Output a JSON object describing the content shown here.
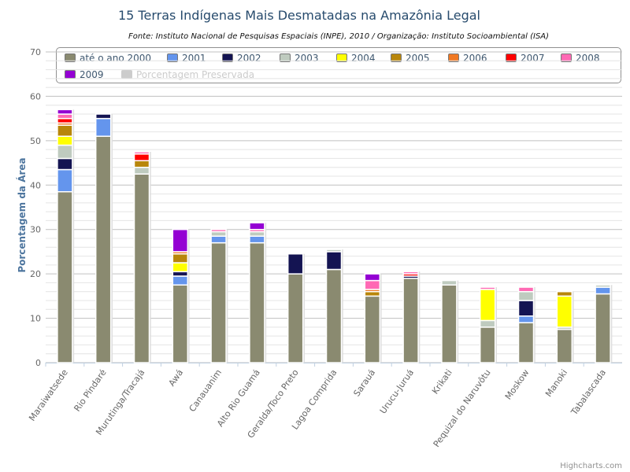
{
  "chart_data": {
    "type": "bar",
    "stacked": true,
    "title": "15 Terras Indígenas Mais Desmatadas na Amazônia Legal",
    "subtitle": "Fonte: Instituto Nacional de Pesquisas Espaciais (INPE), 2010 / Organização: Instituto Socioambiental (ISA)",
    "xlabel": "",
    "ylabel": "Porcentagem da Área",
    "ylim": [
      0,
      70
    ],
    "yticks": [
      0,
      10,
      20,
      30,
      40,
      50,
      60,
      70
    ],
    "grid": true,
    "legend": "top",
    "categories": [
      "Maraiwatsede",
      "Rio Pindaré",
      "Muruting­a/Tracajá",
      "Awá",
      "Canauanim",
      "Alto Rio Guamá",
      "Geralda/Toco Preto",
      "Lagoa Comprida",
      "Sarauá",
      "Urucu-Juruá",
      "Krikati",
      "Pequizal do Naruvôtu",
      "Moskow",
      "Manoki",
      "Tabalascada"
    ],
    "series": [
      {
        "name": "até o ano 2000",
        "color": "#8a8a70",
        "values": [
          38.5,
          51.0,
          42.5,
          17.5,
          27.0,
          27.0,
          20.0,
          21.0,
          15.0,
          19.0,
          17.5,
          8.0,
          9.0,
          7.5,
          15.5
        ]
      },
      {
        "name": "2001",
        "color": "#6495ed",
        "values": [
          5.0,
          4.0,
          0.0,
          2.0,
          1.5,
          1.5,
          0.0,
          0.0,
          0.0,
          0.0,
          0.0,
          0.0,
          1.5,
          0.0,
          1.5
        ]
      },
      {
        "name": "2002",
        "color": "#141452",
        "values": [
          2.5,
          1.0,
          0.0,
          1.0,
          0.0,
          0.0,
          4.5,
          4.0,
          0.0,
          0.5,
          0.0,
          0.0,
          3.5,
          0.0,
          0.0
        ]
      },
      {
        "name": "2003",
        "color": "#bfcbbf",
        "values": [
          3.0,
          0.0,
          1.5,
          0.0,
          1.0,
          1.0,
          0.0,
          0.5,
          0.0,
          0.0,
          1.0,
          1.5,
          2.0,
          0.5,
          0.5
        ]
      },
      {
        "name": "2004",
        "color": "#ffff00",
        "values": [
          2.0,
          0.0,
          0.0,
          2.0,
          0.0,
          0.0,
          0.0,
          0.0,
          0.0,
          0.0,
          0.0,
          7.0,
          0.0,
          7.0,
          0.0
        ]
      },
      {
        "name": "2005",
        "color": "#b8860b",
        "values": [
          2.5,
          0.0,
          1.5,
          2.0,
          0.0,
          0.0,
          0.0,
          0.0,
          1.0,
          0.0,
          0.0,
          0.0,
          0.0,
          1.0,
          0.0
        ]
      },
      {
        "name": "2006",
        "color": "#f07822",
        "values": [
          0.5,
          0.0,
          0.0,
          0.5,
          0.0,
          0.0,
          0.0,
          0.0,
          0.5,
          0.0,
          0.0,
          0.0,
          0.0,
          0.0,
          0.0
        ]
      },
      {
        "name": "2007",
        "color": "#ff0000",
        "values": [
          1.0,
          0.0,
          1.5,
          0.0,
          0.0,
          0.0,
          0.0,
          0.0,
          0.0,
          0.5,
          0.0,
          0.0,
          0.0,
          0.0,
          0.0
        ]
      },
      {
        "name": "2008",
        "color": "#ff69b4",
        "values": [
          1.0,
          0.0,
          0.5,
          0.0,
          0.5,
          0.5,
          0.0,
          0.0,
          2.0,
          0.5,
          0.0,
          0.5,
          1.0,
          0.0,
          0.0
        ]
      },
      {
        "name": "2009",
        "color": "#9400d3",
        "values": [
          1.0,
          0.0,
          0.0,
          5.0,
          0.0,
          1.5,
          0.0,
          0.0,
          1.5,
          0.0,
          0.0,
          0.0,
          0.0,
          0.0,
          0.0
        ]
      }
    ],
    "legend_items": [
      {
        "name": "até o ano 2000",
        "color": "#8a8a70",
        "visible": true
      },
      {
        "name": "2001",
        "color": "#6495ed",
        "visible": true
      },
      {
        "name": "2002",
        "color": "#141452",
        "visible": true
      },
      {
        "name": "2003",
        "color": "#bfcbbf",
        "visible": true
      },
      {
        "name": "2004",
        "color": "#ffff00",
        "visible": true
      },
      {
        "name": "2005",
        "color": "#b8860b",
        "visible": true
      },
      {
        "name": "2006",
        "color": "#f07822",
        "visible": true
      },
      {
        "name": "2007",
        "color": "#ff0000",
        "visible": true
      },
      {
        "name": "2008",
        "color": "#ff69b4",
        "visible": true
      },
      {
        "name": "2009",
        "color": "#9400d3",
        "visible": true
      },
      {
        "name": "Porcentagem Preservada",
        "color": "#cccccc",
        "visible": false
      }
    ],
    "credits": "Highcharts.com"
  }
}
